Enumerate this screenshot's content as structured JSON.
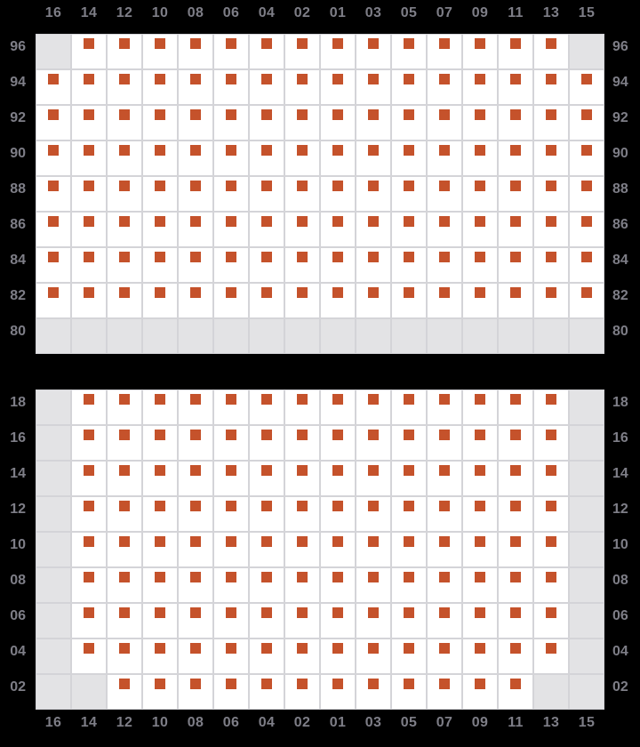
{
  "colors": {
    "background": "#000000",
    "occupied": "#c5522b",
    "empty_cell": "#ffffff",
    "blocked_cell": "#e3e3e5",
    "grid_line": "#d4d4d8",
    "label": "#7e7e87"
  },
  "columns": [
    "16",
    "14",
    "12",
    "10",
    "08",
    "06",
    "04",
    "02",
    "01",
    "03",
    "05",
    "07",
    "09",
    "11",
    "13",
    "15"
  ],
  "cell_legend": {
    "O": "occupied slot with orange marker",
    "X": "gray unavailable slot"
  },
  "panels": [
    {
      "name": "upper-tiers",
      "rows": [
        {
          "label": "96",
          "cells": "XOOOOOOOOOOOOOOX"
        },
        {
          "label": "94",
          "cells": "OOOOOOOOOOOOOOOO"
        },
        {
          "label": "92",
          "cells": "OOOOOOOOOOOOOOOO"
        },
        {
          "label": "90",
          "cells": "OOOOOOOOOOOOOOOO"
        },
        {
          "label": "88",
          "cells": "OOOOOOOOOOOOOOOO"
        },
        {
          "label": "86",
          "cells": "OOOOOOOOOOOOOOOO"
        },
        {
          "label": "84",
          "cells": "OOOOOOOOOOOOOOOO"
        },
        {
          "label": "82",
          "cells": "OOOOOOOOOOOOOOOO"
        },
        {
          "label": "80",
          "cells": "XXXXXXXXXXXXXXXX"
        }
      ]
    },
    {
      "name": "lower-tiers",
      "rows": [
        {
          "label": "18",
          "cells": "XOOOOOOOOOOOOOOX"
        },
        {
          "label": "16",
          "cells": "XOOOOOOOOOOOOOOX"
        },
        {
          "label": "14",
          "cells": "XOOOOOOOOOOOOOOX"
        },
        {
          "label": "12",
          "cells": "XOOOOOOOOOOOOOOX"
        },
        {
          "label": "10",
          "cells": "XOOOOOOOOOOOOOOX"
        },
        {
          "label": "08",
          "cells": "XOOOOOOOOOOOOOOX"
        },
        {
          "label": "06",
          "cells": "XOOOOOOOOOOOOOOX"
        },
        {
          "label": "04",
          "cells": "XOOOOOOOOOOOOOOX"
        },
        {
          "label": "02",
          "cells": "XXOOOOOOOOOOOOXX"
        }
      ]
    }
  ]
}
